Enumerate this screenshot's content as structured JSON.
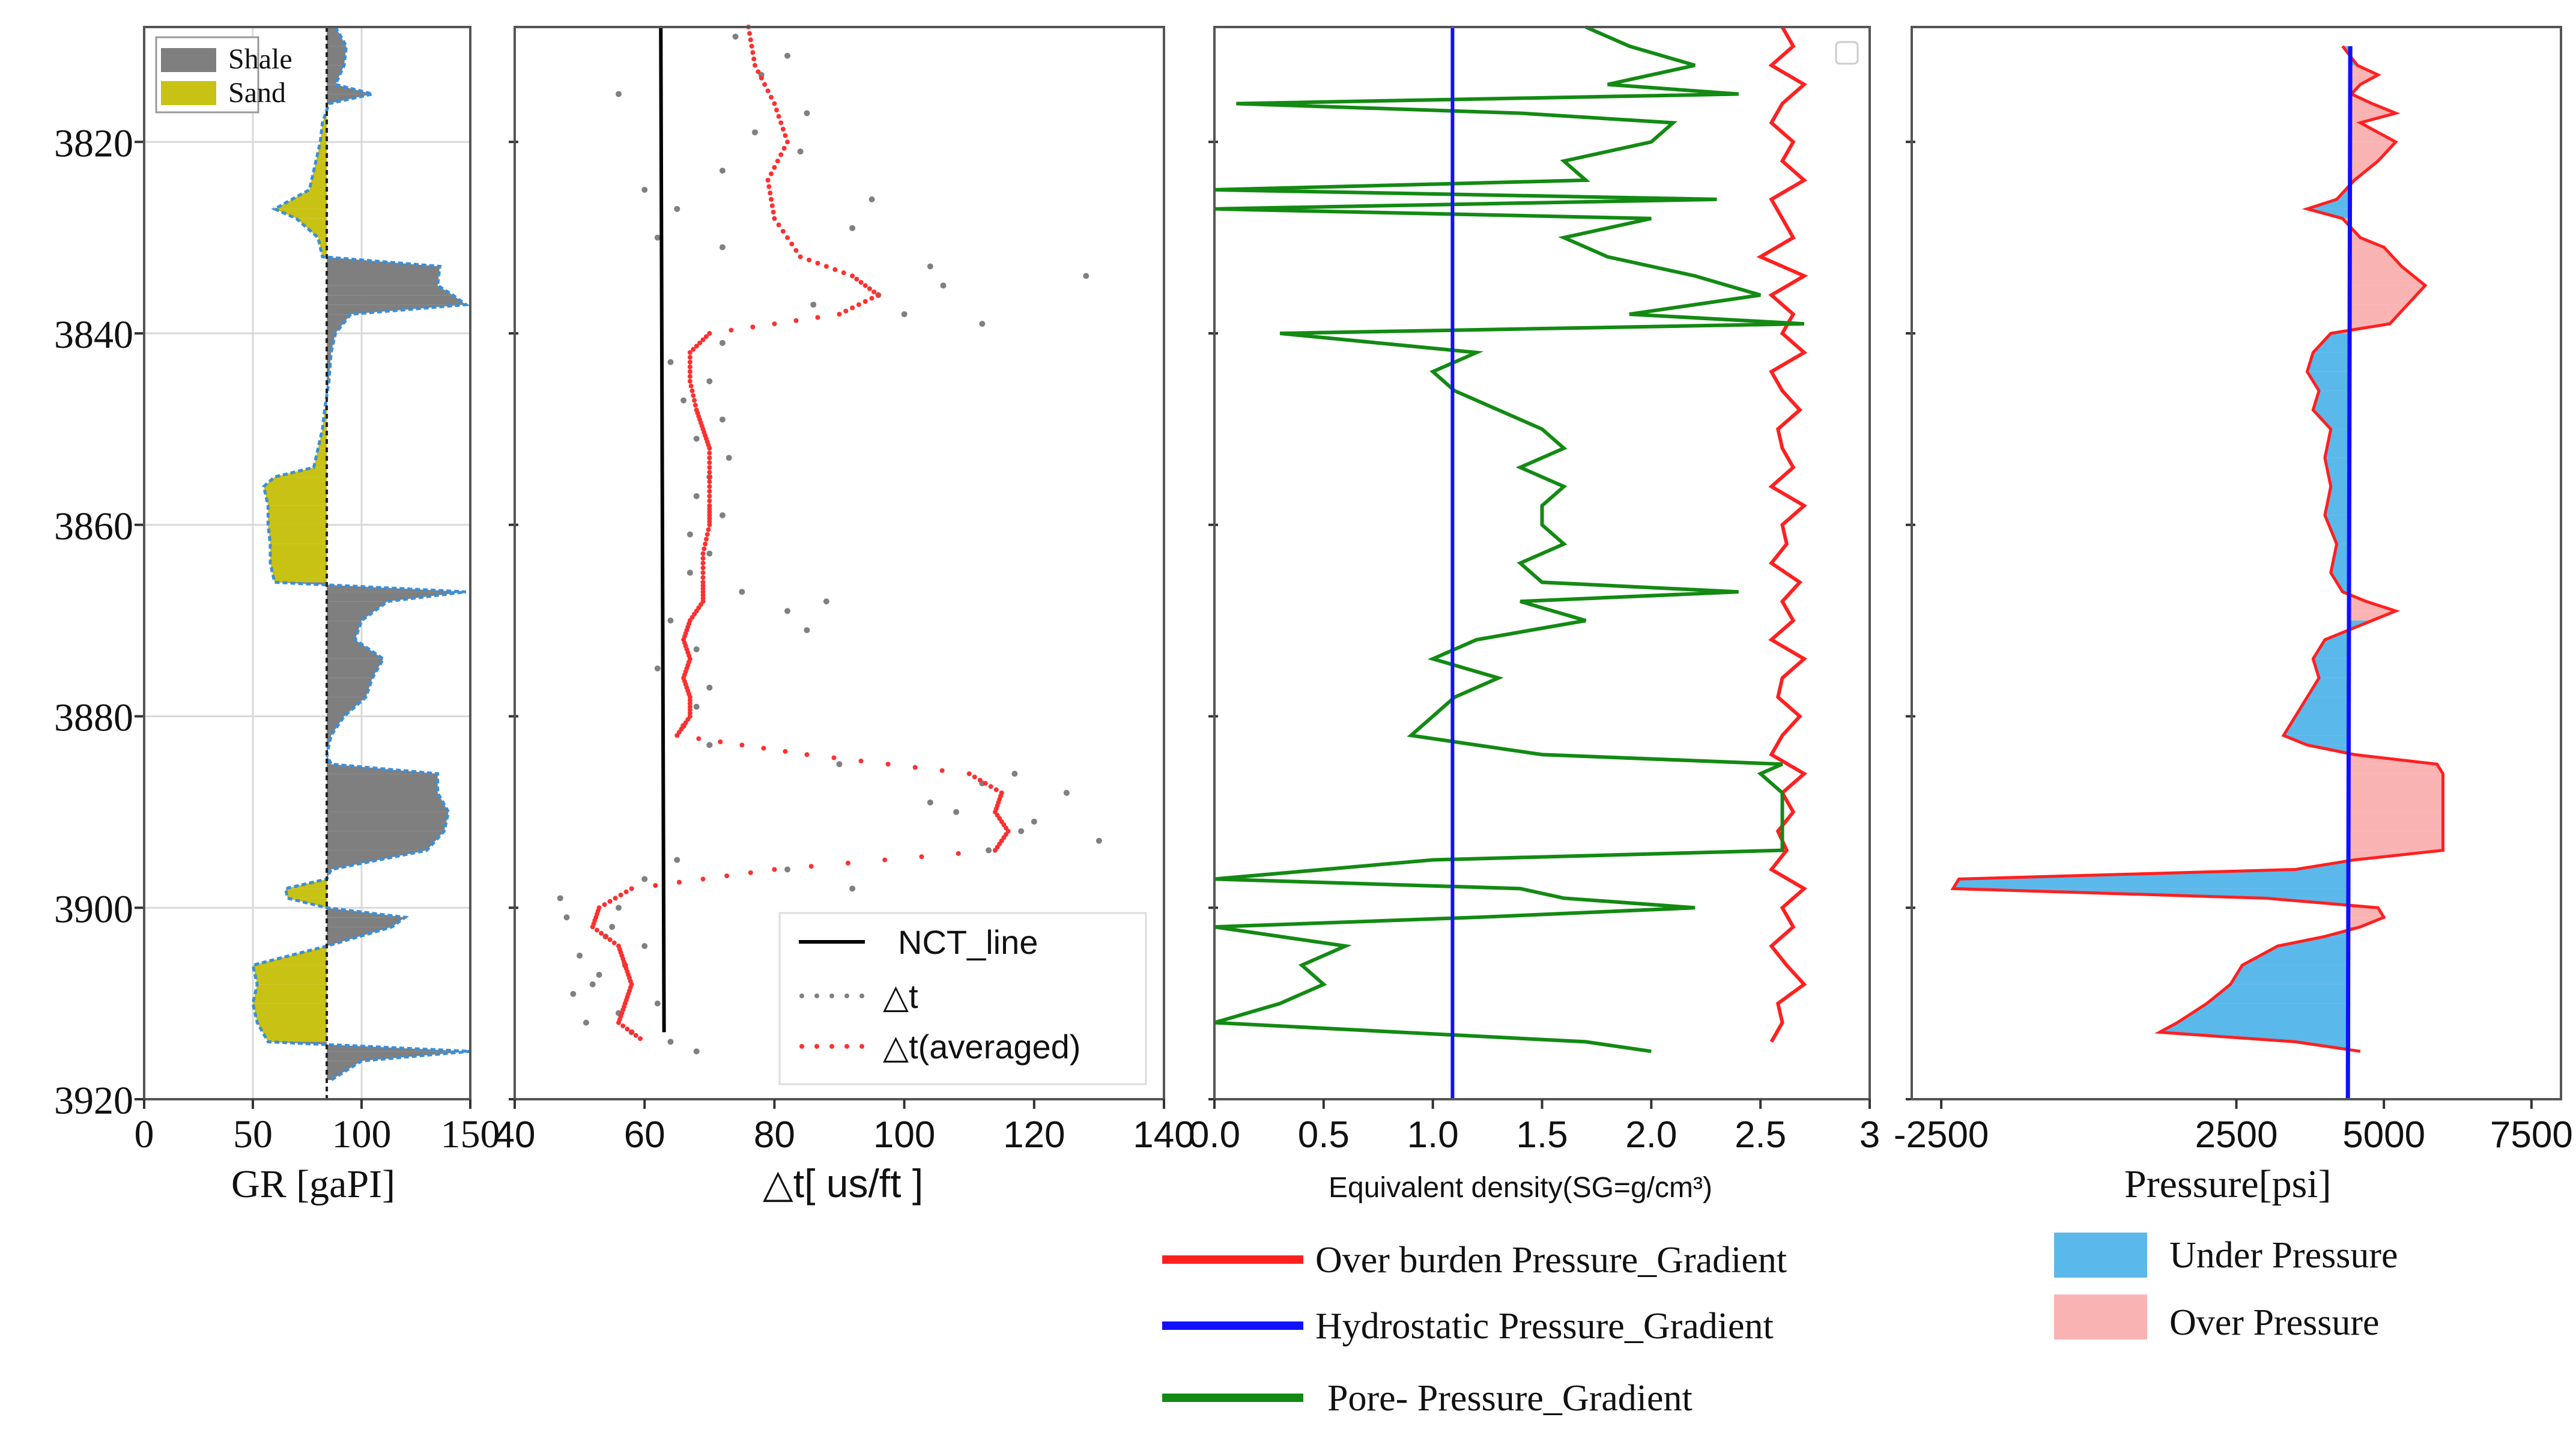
{
  "figure": {
    "depth_axis": {
      "range": [
        3808,
        3920
      ],
      "ticks": [
        3820,
        3840,
        3860,
        3880,
        3900,
        3920
      ],
      "tick_labels": [
        "3820",
        "3840",
        "3860",
        "3880",
        "3900",
        "3920"
      ]
    }
  },
  "chart_data": [
    {
      "id": "gr",
      "type": "area",
      "title": "",
      "xlabel": "GR   [gaPI]",
      "ylabel": "",
      "xlim": [
        0,
        150
      ],
      "x_ticks": [
        0,
        50,
        100,
        150
      ],
      "x_tick_labels": [
        "0",
        "50",
        "100",
        "150"
      ],
      "baseline": 84,
      "legend": [
        {
          "label": "Shale",
          "color": "#7f7f7f"
        },
        {
          "label": "Sand",
          "color": "#c8c214"
        }
      ],
      "series": [
        {
          "name": "GR",
          "color": "#3c8fd6",
          "depth": [
            3808,
            3810,
            3812,
            3814,
            3815,
            3816,
            3818,
            3820,
            3822,
            3825,
            3827,
            3828,
            3830,
            3832,
            3833,
            3835,
            3836,
            3837,
            3838,
            3840,
            3842,
            3845,
            3848,
            3850,
            3852,
            3854,
            3855,
            3856,
            3858,
            3860,
            3862,
            3864,
            3866,
            3867,
            3868,
            3870,
            3872,
            3874,
            3876,
            3878,
            3880,
            3882,
            3884,
            3885,
            3886,
            3888,
            3890,
            3892,
            3894,
            3896,
            3897,
            3898,
            3899,
            3900,
            3901,
            3902,
            3904,
            3906,
            3908,
            3910,
            3912,
            3914,
            3915,
            3916,
            3918
          ],
          "gr": [
            88,
            93,
            92,
            88,
            105,
            85,
            82,
            81,
            79,
            76,
            60,
            70,
            80,
            82,
            136,
            135,
            142,
            148,
            95,
            88,
            86,
            85,
            83,
            82,
            80,
            78,
            60,
            55,
            57,
            57,
            58,
            58,
            60,
            148,
            112,
            100,
            97,
            110,
            105,
            102,
            92,
            86,
            84,
            86,
            135,
            135,
            140,
            138,
            130,
            86,
            84,
            65,
            66,
            84,
            120,
            114,
            84,
            50,
            52,
            50,
            52,
            57,
            150,
            100,
            86
          ]
        }
      ]
    },
    {
      "id": "dt",
      "type": "scatter",
      "title": "",
      "xlabel": "△t[ us/ft  ]",
      "ylabel": "",
      "xlim": [
        40,
        140
      ],
      "x_ticks": [
        40,
        60,
        80,
        100,
        120,
        140
      ],
      "x_tick_labels": [
        "40",
        "60",
        "80",
        "100",
        "120",
        "140"
      ],
      "legend": [
        {
          "label": "NCT_line",
          "color": "#000000"
        },
        {
          "label": "△t",
          "color": "#808080"
        },
        {
          "label": "△t(averaged)",
          "color": "#ff3030"
        }
      ],
      "series": [
        {
          "name": "NCT_line",
          "depth": [
            3808,
            3913
          ],
          "x": [
            62.5,
            63
          ]
        },
        {
          "name": "△t(averaged)",
          "depth": [
            3808,
            3812,
            3816,
            3820,
            3824,
            3828,
            3832,
            3834,
            3836,
            3838,
            3840,
            3842,
            3845,
            3848,
            3850,
            3852,
            3855,
            3858,
            3860,
            3863,
            3866,
            3868,
            3870,
            3872,
            3874,
            3876,
            3878,
            3880,
            3882,
            3884,
            3886,
            3888,
            3890,
            3892,
            3894,
            3896,
            3898,
            3900,
            3902,
            3904,
            3906,
            3908,
            3910,
            3912,
            3914
          ],
          "x": [
            76,
            77,
            80,
            82,
            79,
            80,
            84,
            92,
            96,
            90,
            70,
            67,
            67,
            68,
            69,
            70,
            70,
            70,
            70,
            69,
            69,
            69,
            67,
            66,
            67,
            66,
            67,
            67,
            65,
            85,
            110,
            115,
            114,
            116,
            114,
            80,
            58,
            53,
            52,
            56,
            57,
            58,
            57,
            56,
            60
          ]
        },
        {
          "name": "△t",
          "depth": [
            3809,
            3811,
            3813,
            3815,
            3817,
            3819,
            3821,
            3823,
            3825,
            3826,
            3827,
            3829,
            3830,
            3831,
            3833,
            3834,
            3835,
            3836,
            3837,
            3838,
            3839,
            3841,
            3843,
            3845,
            3847,
            3849,
            3851,
            3853,
            3855,
            3857,
            3859,
            3861,
            3863,
            3865,
            3867,
            3868,
            3869,
            3870,
            3871,
            3873,
            3875,
            3877,
            3879,
            3881,
            3883,
            3885,
            3886,
            3887,
            3888,
            3889,
            3890,
            3891,
            3892,
            3893,
            3894,
            3895,
            3896,
            3897,
            3898,
            3899,
            3900,
            3901,
            3902,
            3903,
            3904,
            3905,
            3906,
            3907,
            3908,
            3909,
            3910,
            3911,
            3912,
            3913,
            3914,
            3915
          ],
          "x": [
            74,
            82,
            78,
            56,
            85,
            77,
            84,
            72,
            60,
            95,
            65,
            92,
            62,
            72,
            104,
            128,
            106,
            96,
            86,
            100,
            112,
            72,
            64,
            70,
            66,
            72,
            68,
            73,
            70,
            68,
            72,
            67,
            70,
            67,
            75,
            88,
            82,
            64,
            85,
            68,
            62,
            70,
            68,
            66,
            70,
            90,
            117,
            112,
            125,
            104,
            108,
            120,
            118,
            130,
            113,
            65,
            82,
            60,
            92,
            47,
            56,
            48,
            55,
            54,
            60,
            50,
            57,
            53,
            52,
            49,
            62,
            56,
            51,
            58,
            64,
            68
          ]
        }
      ]
    },
    {
      "id": "density",
      "type": "line",
      "title": "",
      "xlabel": "Equivalent density(SG=g/cm³)",
      "ylabel": "",
      "xlim": [
        0,
        3
      ],
      "x_ticks": [
        0,
        0.5,
        1,
        1.5,
        2,
        2.5,
        3
      ],
      "x_tick_labels": [
        "0.0",
        "0.5",
        "1.0",
        "1.5",
        "2.0",
        "2.5",
        "3"
      ],
      "legend": [
        {
          "label": "Over burden Pressure_Gradient",
          "color": "#ff2020"
        },
        {
          "label": "Hydrostatic Pressure_Gradient",
          "color": "#1010ff"
        },
        {
          "label": "Pore- Pressure_Gradient",
          "color": "#138a13"
        }
      ],
      "series": [
        {
          "name": "Over burden Pressure_Gradient",
          "depth": [
            3808,
            3810,
            3812,
            3814,
            3816,
            3818,
            3820,
            3822,
            3824,
            3826,
            3828,
            3830,
            3832,
            3834,
            3836,
            3838,
            3840,
            3842,
            3844,
            3846,
            3848,
            3850,
            3852,
            3854,
            3856,
            3858,
            3860,
            3862,
            3864,
            3866,
            3868,
            3870,
            3872,
            3874,
            3876,
            3878,
            3880,
            3882,
            3884,
            3886,
            3888,
            3890,
            3892,
            3894,
            3896,
            3898,
            3900,
            3902,
            3904,
            3906,
            3908,
            3910,
            3912,
            3914
          ],
          "x": [
            2.6,
            2.65,
            2.55,
            2.7,
            2.6,
            2.55,
            2.65,
            2.6,
            2.7,
            2.55,
            2.6,
            2.65,
            2.5,
            2.7,
            2.55,
            2.65,
            2.6,
            2.7,
            2.55,
            2.6,
            2.68,
            2.58,
            2.6,
            2.65,
            2.55,
            2.7,
            2.6,
            2.62,
            2.55,
            2.68,
            2.6,
            2.65,
            2.55,
            2.7,
            2.6,
            2.58,
            2.68,
            2.6,
            2.55,
            2.7,
            2.6,
            2.65,
            2.58,
            2.62,
            2.55,
            2.7,
            2.6,
            2.65,
            2.55,
            2.62,
            2.7,
            2.58,
            2.6,
            2.55
          ]
        },
        {
          "name": "Hydrostatic Pressure_Gradient",
          "depth": [
            3808,
            3920
          ],
          "x": [
            1.09,
            1.09
          ]
        },
        {
          "name": "Pore- Pressure_Gradient",
          "depth": [
            3808,
            3810,
            3812,
            3814,
            3815,
            3816,
            3817,
            3818,
            3820,
            3822,
            3824,
            3825,
            3826,
            3827,
            3828,
            3830,
            3832,
            3834,
            3836,
            3838,
            3839,
            3840,
            3842,
            3844,
            3846,
            3848,
            3850,
            3852,
            3854,
            3856,
            3858,
            3860,
            3862,
            3864,
            3866,
            3867,
            3868,
            3870,
            3872,
            3874,
            3876,
            3878,
            3880,
            3882,
            3884,
            3885,
            3886,
            3888,
            3890,
            3892,
            3894,
            3895,
            3897,
            3898,
            3899,
            3900,
            3901,
            3902,
            3904,
            3906,
            3908,
            3910,
            3912,
            3914,
            3915
          ],
          "x": [
            1.7,
            1.9,
            2.2,
            1.8,
            2.4,
            0.1,
            1.4,
            2.1,
            2.0,
            1.6,
            1.7,
            0.0,
            2.3,
            0.0,
            2.0,
            1.6,
            1.8,
            2.2,
            2.5,
            1.9,
            2.7,
            0.3,
            1.2,
            1.0,
            1.1,
            1.3,
            1.5,
            1.6,
            1.4,
            1.6,
            1.5,
            1.5,
            1.6,
            1.4,
            1.5,
            2.4,
            1.4,
            1.7,
            1.2,
            1.0,
            1.3,
            1.1,
            1.0,
            0.9,
            1.5,
            2.6,
            2.5,
            2.6,
            2.6,
            2.6,
            2.6,
            1.0,
            0.0,
            1.4,
            1.6,
            2.2,
            1.2,
            0.0,
            0.6,
            0.4,
            0.5,
            0.3,
            0.0,
            1.7,
            2.0
          ]
        }
      ]
    },
    {
      "id": "pressure",
      "type": "area",
      "title": "",
      "xlabel": "Pressure[psi]",
      "ylabel": "",
      "xlim": [
        -3000,
        8000
      ],
      "x_ticks": [
        -2500,
        2500,
        5000,
        7500
      ],
      "x_tick_labels": [
        "-2500",
        "2500",
        "5000",
        "7500"
      ],
      "hydrostatic_psi": 4430,
      "legend": [
        {
          "label": "Under Pressure",
          "color": "#5bb8ea"
        },
        {
          "label": "Over Pressure",
          "color": "#f9b3b3"
        }
      ],
      "series": [
        {
          "name": "Pore pressure",
          "color": "#ff2020",
          "depth": [
            3810,
            3812,
            3813,
            3814,
            3815,
            3816,
            3817,
            3818,
            3820,
            3822,
            3824,
            3826,
            3827,
            3828,
            3830,
            3831,
            3833,
            3835,
            3837,
            3839,
            3840,
            3842,
            3844,
            3846,
            3848,
            3850,
            3853,
            3856,
            3859,
            3862,
            3865,
            3867,
            3868,
            3869,
            3870,
            3872,
            3874,
            3876,
            3878,
            3880,
            3882,
            3883,
            3884,
            3885,
            3886,
            3888,
            3890,
            3892,
            3894,
            3895,
            3896,
            3897,
            3898,
            3899,
            3900,
            3901,
            3902,
            3903,
            3904,
            3906,
            3908,
            3910,
            3912,
            3913,
            3914,
            3915
          ],
          "x": [
            4300,
            4550,
            4900,
            4600,
            4450,
            4800,
            5200,
            4600,
            5200,
            4900,
            4500,
            4200,
            3700,
            4300,
            4600,
            5000,
            5300,
            5700,
            5400,
            5100,
            4100,
            3800,
            3700,
            3900,
            3800,
            4100,
            4000,
            4100,
            4000,
            4200,
            4100,
            4300,
            4700,
            5200,
            4800,
            4000,
            3800,
            3900,
            3700,
            3500,
            3300,
            3700,
            4500,
            5900,
            6000,
            6000,
            6000,
            6000,
            6000,
            4500,
            3500,
            -2200,
            -2300,
            3000,
            4900,
            5000,
            4600,
            4000,
            3200,
            2600,
            2400,
            2000,
            1500,
            1200,
            3500,
            4600
          ]
        }
      ]
    }
  ],
  "legends_bottom": {
    "density": [
      {
        "label": "Over burden Pressure_Gradient",
        "color": "#ff2020"
      },
      {
        "label": "Hydrostatic Pressure_Gradient",
        "color": "#1010ff"
      },
      {
        "label": "Pore- Pressure_Gradient",
        "color": "#138a13"
      }
    ],
    "pressure": [
      {
        "label": "Under Pressure",
        "color": "#5bb8ea"
      },
      {
        "label": "Over Pressure",
        "color": "#f9b3b3"
      }
    ]
  }
}
